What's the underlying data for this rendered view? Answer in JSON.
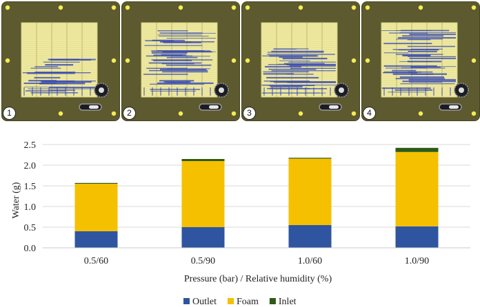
{
  "panels": [
    {
      "label": "1",
      "water_band_top": 0.48,
      "density": 26
    },
    {
      "label": "2",
      "water_band_top": 0.1,
      "density": 40
    },
    {
      "label": "3",
      "water_band_top": 0.32,
      "density": 36
    },
    {
      "label": "4",
      "water_band_top": 0.08,
      "density": 44
    }
  ],
  "colors": {
    "panel_bg": "#5d5a30",
    "flowfield": "#efeaa0",
    "water": "#3a4bb0",
    "dot": "#f2ec55"
  },
  "chart_data": {
    "type": "bar",
    "stacked": true,
    "categories": [
      "0.5/60",
      "0.5/90",
      "1.0/60",
      "1.0/90"
    ],
    "series": [
      {
        "name": "Outlet",
        "values": [
          0.4,
          0.5,
          0.55,
          0.52
        ],
        "color": "#2f55a0"
      },
      {
        "name": "Foam",
        "values": [
          1.15,
          1.6,
          1.61,
          1.8
        ],
        "color": "#f5c000"
      },
      {
        "name": "Inlet",
        "values": [
          0.02,
          0.05,
          0.02,
          0.1
        ],
        "color": "#2d5a16"
      }
    ],
    "ylabel": "Water (g)",
    "xlabel": "Pressure (bar) / Relative humidity (%)",
    "ylim": [
      0,
      2.5
    ],
    "yticks": [
      "0.0",
      "0.5",
      "1.0",
      "1.5",
      "2.0",
      "2.5"
    ],
    "legend_position": "bottom"
  }
}
